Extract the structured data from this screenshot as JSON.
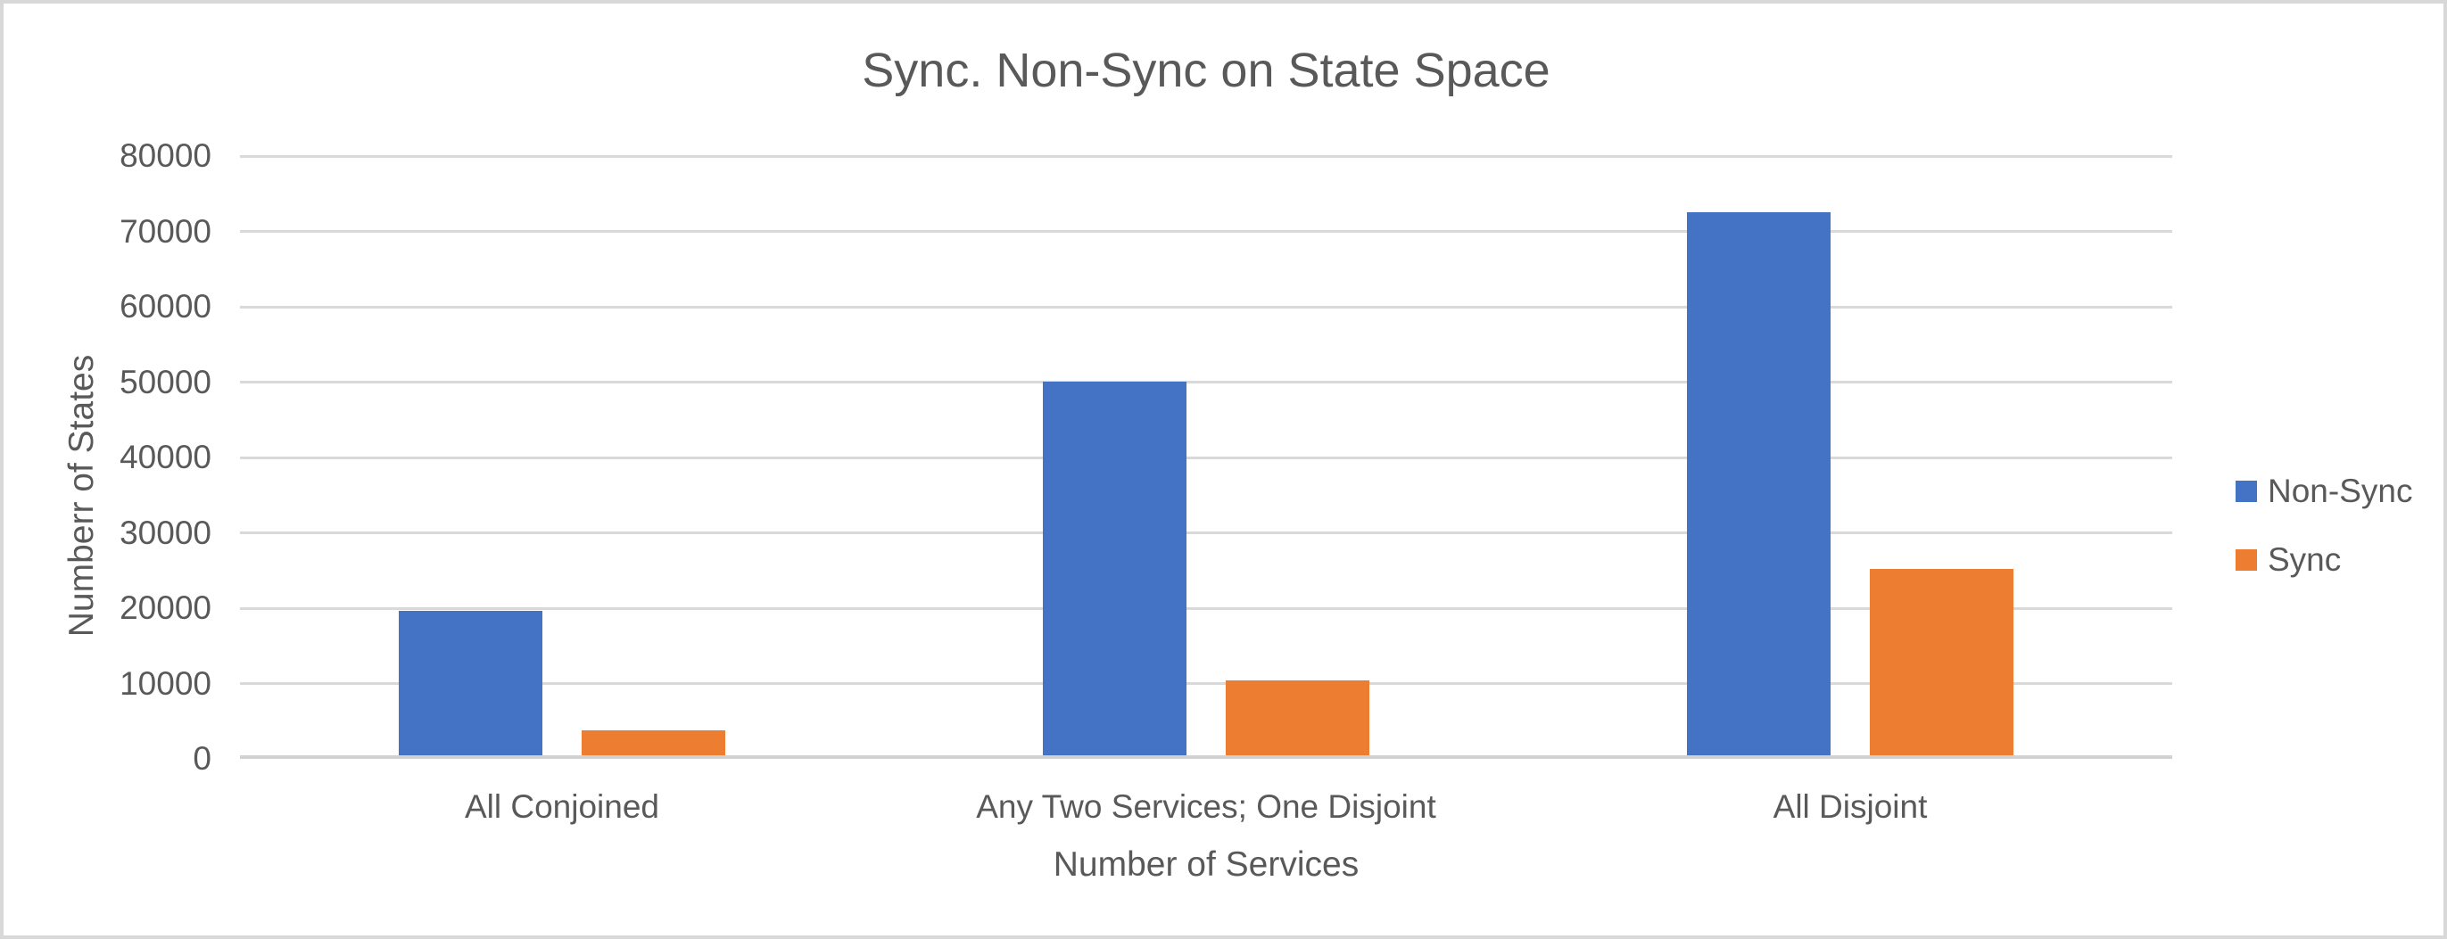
{
  "chart_data": {
    "type": "bar",
    "title": "Sync. Non-Sync on State Space",
    "xlabel": "Number of Services",
    "ylabel": "Numberr of States",
    "categories": [
      "All Conjoined",
      "Any Two Services; One Disjoint",
      "All Disjoint"
    ],
    "series": [
      {
        "name": "Non-Sync",
        "color": "#4472C4",
        "values": [
          19700,
          50000,
          72600
        ]
      },
      {
        "name": "Sync",
        "color": "#ED7D31",
        "values": [
          3800,
          10400,
          25200
        ]
      }
    ],
    "ylim": [
      0,
      80000
    ],
    "ytick_interval": 10000,
    "ytick_labels": [
      "0",
      "10000",
      "20000",
      "30000",
      "40000",
      "50000",
      "60000",
      "70000",
      "80000"
    ],
    "grid": true,
    "legend_position": "right"
  },
  "colors": {
    "non_sync": "#4472C4",
    "sync": "#ED7D31",
    "text": "#595959",
    "gridline": "#D9D9D9",
    "axis_line": "#D2D2D2",
    "canvas_border": "#D8D8D8",
    "background": "#FFFFFF"
  }
}
